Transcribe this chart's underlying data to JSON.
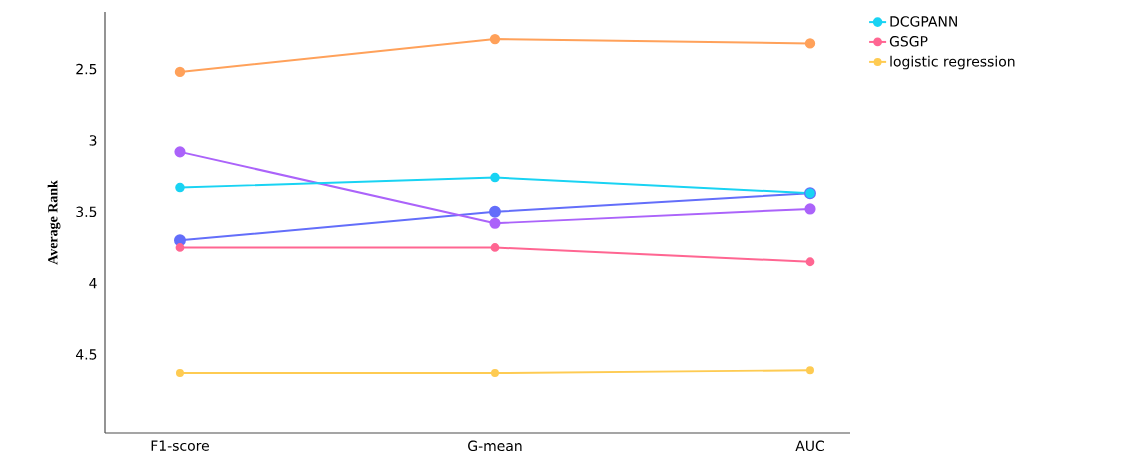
{
  "chart_data": {
    "type": "line",
    "ylabel": "Average Rank",
    "categories": [
      "F1-score",
      "G-mean",
      "AUC"
    ],
    "ylim": [
      5.05,
      2.1
    ],
    "yticks": [
      2.5,
      3,
      3.5,
      4,
      4.5
    ],
    "grid": false,
    "legend": "right",
    "marker": "circle",
    "line_style": "solid",
    "series": [
      {
        "color": "#636efa",
        "values": [
          3.7,
          3.5,
          3.37
        ]
      },
      {
        "color": "#ab63fa",
        "values": [
          3.08,
          3.58,
          3.48
        ]
      },
      {
        "color": "#ffa15a",
        "values": [
          2.52,
          2.29,
          2.32
        ]
      },
      {
        "name": "DCGPANN",
        "color": "#19d3f3",
        "values": [
          3.33,
          3.26,
          3.37
        ]
      },
      {
        "name": "GSGP",
        "color": "#ff6692",
        "values": [
          3.75,
          3.75,
          3.85
        ]
      },
      {
        "name": "logistic regression",
        "color": "#fecb52",
        "values": [
          4.63,
          4.63,
          4.61
        ]
      }
    ]
  }
}
